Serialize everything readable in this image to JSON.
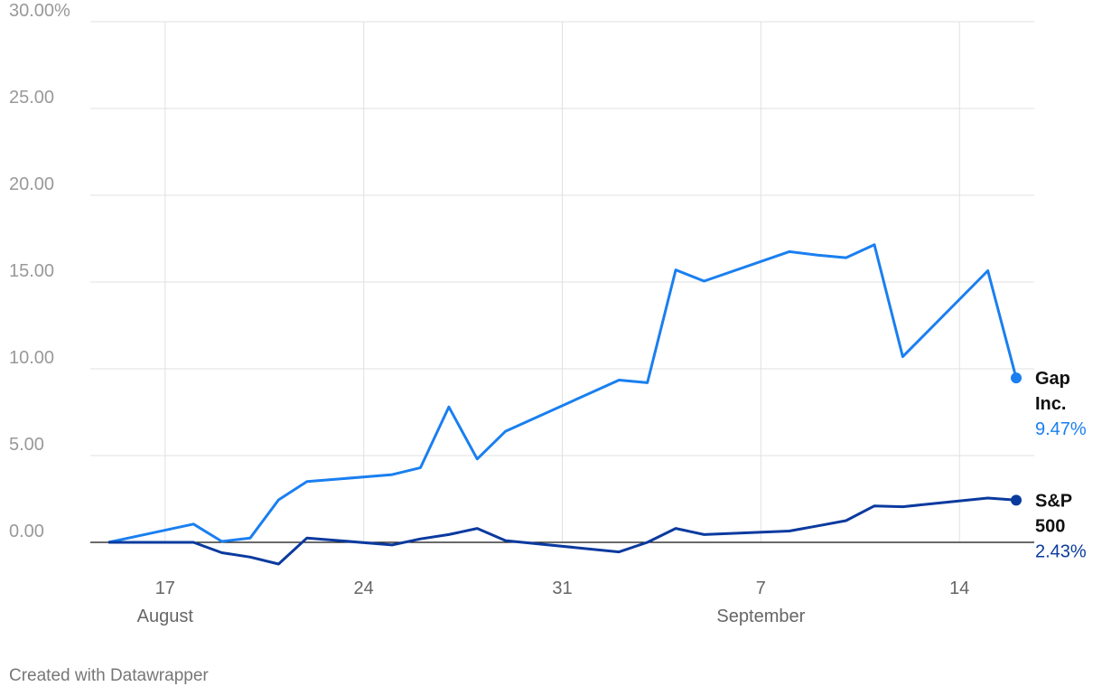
{
  "chart_data": {
    "type": "line",
    "x": [
      "August 15",
      "August 18",
      "August 19",
      "August 20",
      "August 21",
      "August 22",
      "August 25",
      "August 26",
      "August 27",
      "August 28",
      "August 29",
      "September 2",
      "September 3",
      "September 4",
      "September 5",
      "September 8",
      "September 9",
      "September 10",
      "September 11",
      "September 12",
      "September 15",
      "September 16"
    ],
    "series": [
      {
        "name": "Gap Inc.",
        "color": "#1a7ff0",
        "values": [
          0,
          1.05,
          0.05,
          0.25,
          2.45,
          3.5,
          3.9,
          4.3,
          7.8,
          4.8,
          6.4,
          9.35,
          9.2,
          15.7,
          15.05,
          16.75,
          16.55,
          16.4,
          17.15,
          10.7,
          15.65,
          9.47
        ],
        "value_labels": [
          null,
          null,
          null,
          null,
          null,
          null,
          null,
          null,
          null,
          null,
          null,
          null,
          null,
          null,
          null,
          null,
          null,
          null,
          null,
          null,
          null,
          "9.47%"
        ]
      },
      {
        "name": "S&P 500",
        "color": "#0b3a9f",
        "values": [
          0,
          0,
          -0.6,
          -0.85,
          -1.25,
          0.25,
          -0.15,
          0.2,
          0.45,
          0.8,
          0.1,
          -0.55,
          0,
          0.8,
          0.45,
          0.65,
          0.95,
          1.25,
          2.1,
          2.05,
          2.55,
          2.43
        ],
        "value_labels": [
          null,
          null,
          null,
          null,
          null,
          null,
          null,
          null,
          null,
          null,
          null,
          null,
          null,
          null,
          null,
          null,
          null,
          null,
          null,
          null,
          null,
          "2.43%"
        ]
      }
    ],
    "xlim": [
      "August 15",
      "September 16"
    ],
    "xticks": [
      {
        "value": "August 17",
        "label": "17"
      },
      {
        "value": "August 24",
        "label": "24"
      },
      {
        "value": "August 31",
        "label": "31"
      },
      {
        "value": "September 7",
        "label": "7"
      },
      {
        "value": "September 14",
        "label": "14"
      }
    ],
    "x_groups": [
      {
        "label": "August",
        "at": "August 17"
      },
      {
        "label": "September",
        "at": "September 7"
      }
    ],
    "ylim": [
      0,
      30
    ],
    "yticks": [
      {
        "value": 0,
        "label": "0.00"
      },
      {
        "value": 5,
        "label": "5.00"
      },
      {
        "value": 10,
        "label": "10.00"
      },
      {
        "value": 15,
        "label": "15.00"
      },
      {
        "value": 20,
        "label": "20.00"
      },
      {
        "value": 25,
        "label": "25.00"
      },
      {
        "value": 30,
        "label": "30.00%"
      }
    ],
    "grid": true,
    "credit": "Created with Datawrapper"
  }
}
